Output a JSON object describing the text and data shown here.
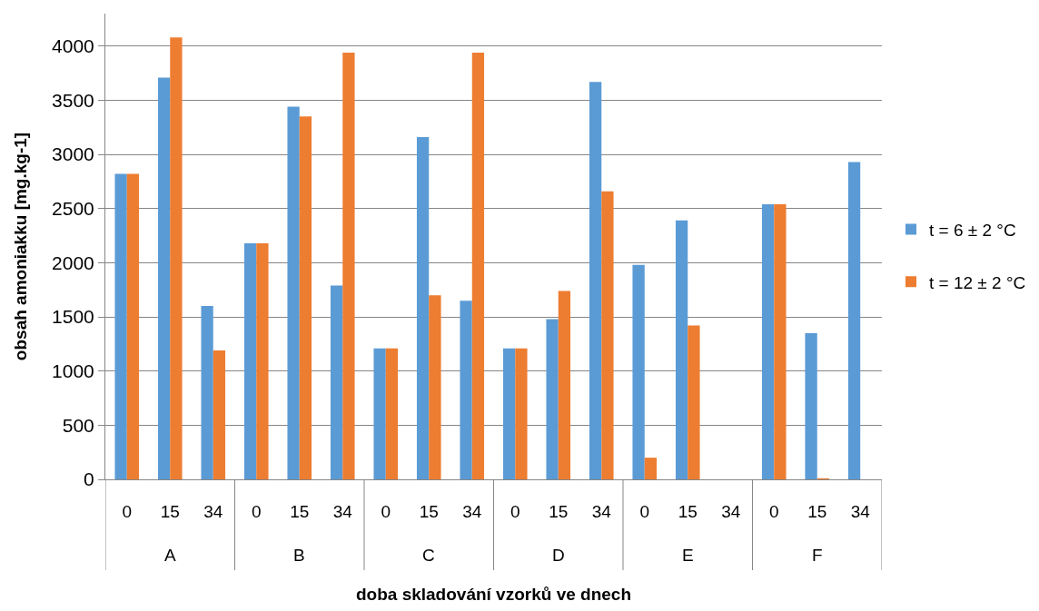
{
  "chart_data": {
    "type": "bar",
    "xlabel": "doba skladování vzorků ve dnech",
    "ylabel": "obsah amoniakku [mg.kg-1]",
    "categories": [
      "0",
      "15",
      "34",
      "0",
      "15",
      "34",
      "0",
      "15",
      "34",
      "0",
      "15",
      "34",
      "0",
      "15",
      "34",
      "0",
      "15",
      "34"
    ],
    "annotations": [
      "A",
      "B",
      "C",
      "D",
      "E",
      "F"
    ],
    "series": [
      {
        "name": "t = 6 ± 2 °C",
        "color": "#5b9bd5",
        "values": [
          2820,
          3710,
          1600,
          2180,
          3440,
          1790,
          1210,
          3160,
          1650,
          1210,
          1480,
          3670,
          1980,
          2390,
          null,
          2540,
          1350,
          2930
        ]
      },
      {
        "name": "t = 12 ± 2 °C",
        "color": "#ed7d31",
        "values": [
          2820,
          4080,
          1190,
          2180,
          3350,
          3940,
          1210,
          1700,
          3940,
          1210,
          1740,
          2660,
          200,
          1420,
          null,
          2540,
          10,
          null
        ]
      }
    ],
    "ylim": [
      0,
      4300
    ],
    "yticks": [
      0,
      500,
      1000,
      1500,
      2000,
      2500,
      3000,
      3500,
      4000
    ],
    "grid": "y",
    "legend": "right"
  }
}
